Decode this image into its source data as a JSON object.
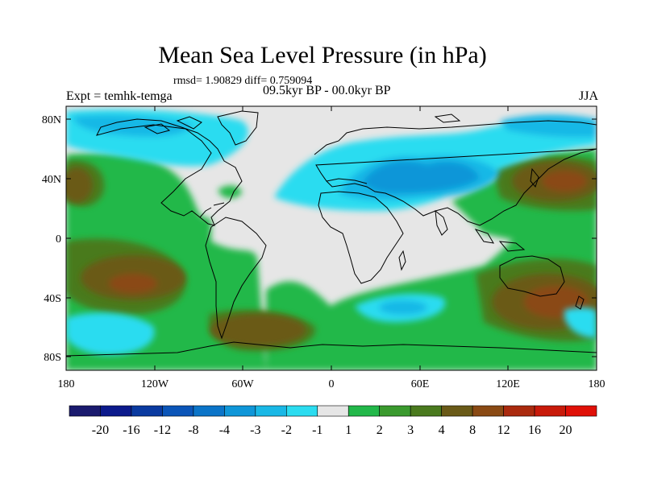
{
  "header": {
    "title": "Mean Sea Level Pressure (in hPa)",
    "stats": "rmsd= 1.90829 diff= 0.759094",
    "experiment": "Expt = temhk-temga",
    "period": "09.5kyr BP - 00.0kyr BP",
    "season": "JJA"
  },
  "map": {
    "lat_labels": [
      "80N",
      "40N",
      "0",
      "40S",
      "80S"
    ],
    "lon_labels": [
      "180",
      "120W",
      "60W",
      "0",
      "60E",
      "120E",
      "180"
    ]
  },
  "colorbar": {
    "labels": [
      "-20",
      "-16",
      "-12",
      "-8",
      "-4",
      "-3",
      "-2",
      "-1",
      "1",
      "2",
      "3",
      "4",
      "8",
      "12",
      "16",
      "20"
    ],
    "colors": [
      "#1a1a6e",
      "#0c1a8c",
      "#0a3aa0",
      "#0b55b8",
      "#0b74c8",
      "#0f96d8",
      "#19b8e6",
      "#2bdcf0",
      "#e6e6e6",
      "#22b84a",
      "#3a9a2e",
      "#4a7a1e",
      "#6a5a18",
      "#8a4a14",
      "#aa2a0e",
      "#c81a0a",
      "#e01008"
    ]
  }
}
